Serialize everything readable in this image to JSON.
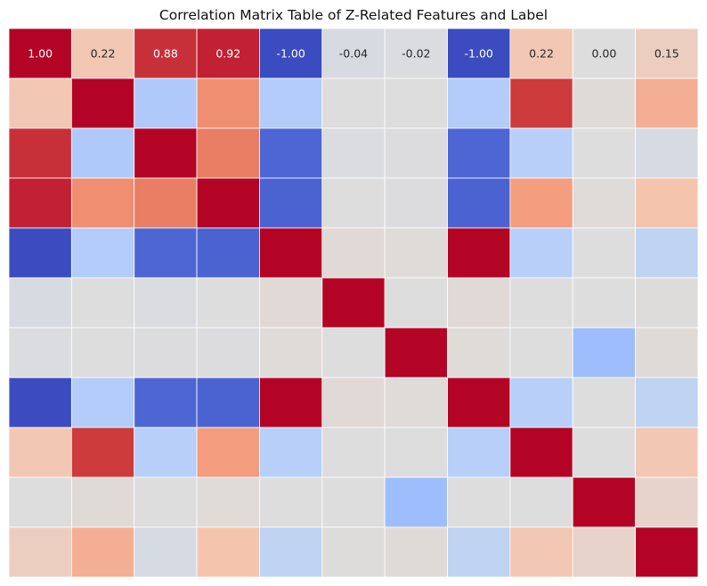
{
  "chart_data": {
    "type": "heatmap",
    "title": "Correlation Matrix Table of Z-Related Features and Label",
    "xlabel": "",
    "ylabel": "",
    "colormap": "coolwarm",
    "vmin": -1.0,
    "vmax": 1.0,
    "grid": false,
    "legend": "none",
    "annotation_row": [
      0
    ],
    "annotation_format": "{:.2f}",
    "values": [
      [
        1.0,
        0.22,
        0.88,
        0.92,
        -1.0,
        -0.04,
        -0.02,
        -1.0,
        0.22,
        0.0,
        0.15
      ],
      [
        0.22,
        1.0,
        -0.3,
        0.55,
        -0.28,
        0.0,
        0.0,
        -0.28,
        0.85,
        0.03,
        0.38
      ],
      [
        0.88,
        -0.3,
        1.0,
        0.62,
        -0.88,
        -0.02,
        -0.01,
        -0.88,
        -0.25,
        0.0,
        -0.05
      ],
      [
        0.92,
        0.55,
        0.62,
        1.0,
        -0.9,
        0.0,
        -0.01,
        -0.9,
        0.48,
        0.02,
        0.25
      ],
      [
        -1.0,
        -0.28,
        -0.88,
        -0.9,
        1.0,
        0.04,
        0.02,
        1.0,
        -0.25,
        0.0,
        -0.2
      ],
      [
        -0.04,
        0.0,
        -0.02,
        0.0,
        0.04,
        1.0,
        0.0,
        0.04,
        0.0,
        0.0,
        0.01
      ],
      [
        -0.02,
        0.0,
        -0.01,
        -0.01,
        0.02,
        0.0,
        1.0,
        0.02,
        0.0,
        -0.4,
        0.03
      ],
      [
        -1.0,
        -0.28,
        -0.88,
        -0.9,
        1.0,
        0.04,
        0.02,
        1.0,
        -0.25,
        0.0,
        -0.2
      ],
      [
        0.22,
        0.85,
        -0.25,
        0.48,
        -0.25,
        0.0,
        0.0,
        -0.25,
        1.0,
        0.0,
        0.22
      ],
      [
        0.0,
        0.03,
        0.0,
        0.02,
        0.0,
        0.0,
        -0.4,
        0.0,
        0.0,
        1.0,
        0.1
      ],
      [
        0.15,
        0.38,
        -0.05,
        0.25,
        -0.2,
        0.01,
        0.03,
        -0.2,
        0.22,
        0.1,
        1.0
      ]
    ]
  }
}
